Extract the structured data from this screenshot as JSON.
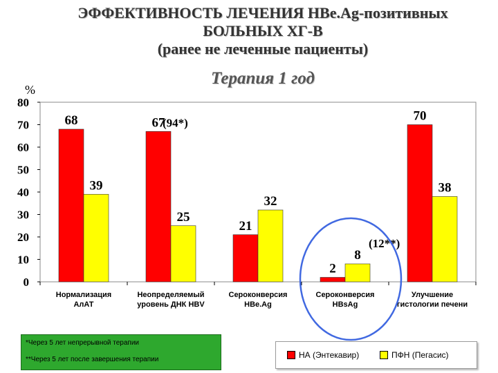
{
  "header": {
    "title_line1": "ЭФФЕКТИВНОСТЬ ЛЕЧЕНИЯ HBe.Ag-позитивных",
    "title_line2": "БОЛЬНЫХ ХГ-В",
    "title_line3": "(ранее не леченные пациенты)",
    "subtitle": "Терапия 1 год",
    "unit": "%"
  },
  "chart_data": {
    "type": "bar",
    "categories": [
      [
        "Нормализация",
        "АлАТ"
      ],
      [
        "Неопределяемый",
        "уровень ДНК HBV"
      ],
      [
        "Сероконверсия",
        "HBe.Ag"
      ],
      [
        "Сероконверсия",
        "HBsAg"
      ],
      [
        "Улучшение",
        "гистологии печени"
      ]
    ],
    "series": [
      {
        "name": "НА (Энтекавир)",
        "color": "#ff0000",
        "values": [
          68,
          67,
          21,
          2,
          70
        ]
      },
      {
        "name": "ПФН (Пегасис)",
        "color": "#ffff00",
        "values": [
          39,
          25,
          32,
          8,
          38
        ]
      }
    ],
    "ylim": [
      0,
      80
    ],
    "yticks": [
      0,
      10,
      20,
      30,
      40,
      50,
      60,
      70,
      80
    ],
    "annotations": [
      {
        "text": "(94*)",
        "category": 1
      },
      {
        "text": "(12**)",
        "category": 3
      }
    ],
    "grid": false,
    "legend_position": "bottom-right"
  },
  "footnotes": [
    "*Через 5 лет непрерывной терапии",
    "**Через 5 лет после завершения терапии"
  ],
  "colors": {
    "series1": "#ff0000",
    "series2": "#ffff00",
    "highlight_circle": "#4169e1",
    "footnote_bg": "#2ea82e"
  }
}
